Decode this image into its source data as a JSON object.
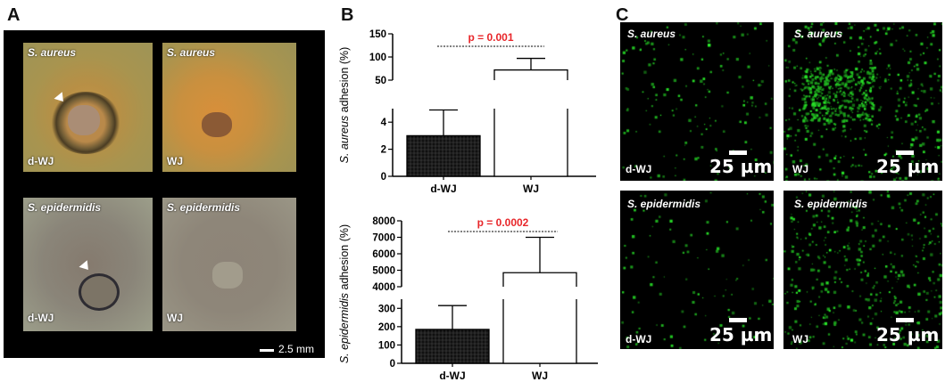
{
  "panel_letters": {
    "a": "A",
    "b": "B",
    "c": "C"
  },
  "panel_a": {
    "tiles": [
      {
        "species": "S. aureus",
        "condition": "d-WJ"
      },
      {
        "species": "S. aureus",
        "condition": "WJ"
      },
      {
        "species": "S. epidermidis",
        "condition": "d-WJ"
      },
      {
        "species": "S. epidermidis",
        "condition": "WJ"
      }
    ],
    "scale_bar": "2.5 mm",
    "colors": {
      "aureus_bg": "#b39a52",
      "epi_bg": "#8c8478",
      "frame": "#000000"
    }
  },
  "panel_c": {
    "tiles": [
      {
        "species": "S. aureus",
        "condition": "d-WJ"
      },
      {
        "species": "S. aureus",
        "condition": "WJ"
      },
      {
        "species": "S. epidermidis",
        "condition": "d-WJ"
      },
      {
        "species": "S. epidermidis",
        "condition": "WJ"
      }
    ],
    "scale_bar": "25 µm",
    "colors": {
      "fluor": "#2bd62b"
    }
  },
  "chart_data": [
    {
      "type": "bar",
      "categories": [
        "d-WJ",
        "WJ"
      ],
      "values": [
        3.0,
        72
      ],
      "errors": [
        1.9,
        25
      ],
      "ylabel_italic": "S. aureus",
      "ylabel_rest": " adhesion (%)",
      "axis_break": true,
      "lower_ylim": [
        0,
        5
      ],
      "lower_ticks": [
        "0",
        "2",
        "4"
      ],
      "upper_ylim": [
        50,
        150
      ],
      "upper_ticks": [
        "50",
        "100",
        "150"
      ],
      "annotation": "p = 0.001",
      "annotation_color": "#e8262a",
      "bar_fill": [
        "hatched-black",
        "white"
      ]
    },
    {
      "type": "bar",
      "categories": [
        "d-WJ",
        "WJ"
      ],
      "values": [
        185,
        4850
      ],
      "errors": [
        130,
        2150
      ],
      "ylabel_italic": "S. epidermidis",
      "ylabel_rest": " adhesion (%)",
      "axis_break": true,
      "lower_ylim": [
        0,
        350
      ],
      "lower_ticks": [
        "0",
        "100",
        "200",
        "300"
      ],
      "upper_ylim": [
        4000,
        8000
      ],
      "upper_ticks": [
        "4000",
        "5000",
        "6000",
        "7000",
        "8000"
      ],
      "annotation": "p = 0.0002",
      "annotation_color": "#e8262a",
      "bar_fill": [
        "hatched-black",
        "white"
      ]
    }
  ]
}
